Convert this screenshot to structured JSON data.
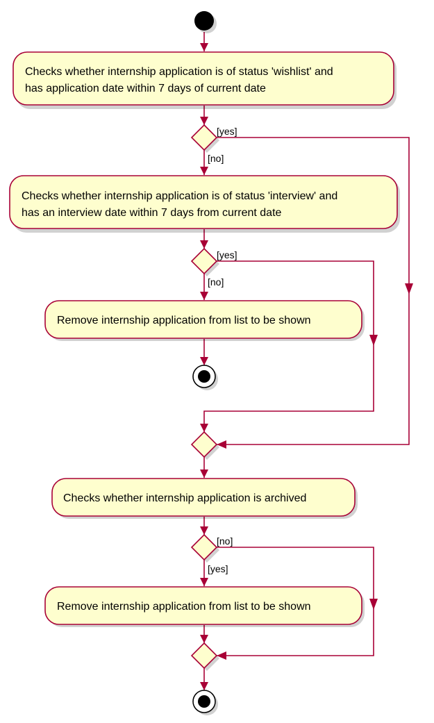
{
  "colors": {
    "line": "#A80036",
    "node_fill": "#FEFECE",
    "background": "#FFFFFF",
    "start_end": "#000000"
  },
  "actions": {
    "wishlist_check": {
      "line1": "Checks whether internship application is of status 'wishlist' and",
      "line2": "has application date within 7 days of current date"
    },
    "interview_check": {
      "line1": "Checks whether internship application is of status 'interview' and",
      "line2": "has an interview date within 7 days from current date"
    },
    "remove_first": "Remove internship application from list to be shown",
    "archived_check": "Checks whether internship application is archived",
    "remove_second": "Remove internship application from list to be shown"
  },
  "guards": {
    "decision1_yes": "[yes]",
    "decision1_no": "[no]",
    "decision2_yes": "[yes]",
    "decision2_no": "[no]",
    "decision3_no": "[no]",
    "decision3_yes": "[yes]"
  },
  "icons": {
    "start": "start-node-icon",
    "stop": "stop-node-icon",
    "decision": "decision-diamond-icon",
    "arrow": "arrowhead-icon"
  }
}
